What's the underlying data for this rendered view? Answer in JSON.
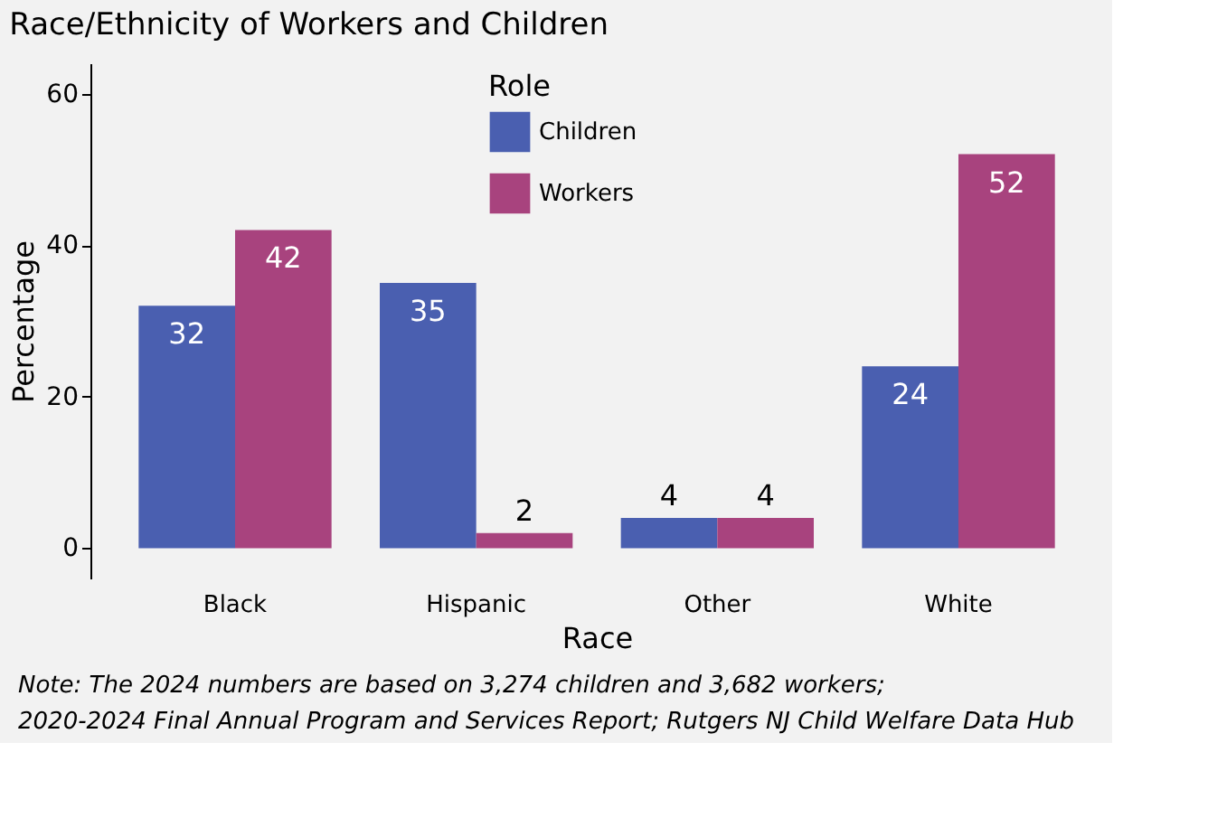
{
  "chart_data": {
    "type": "bar",
    "title": "Race/Ethnicity of Workers and Children",
    "xlabel": "Race",
    "ylabel": "Percentage",
    "legend_title": "Role",
    "categories": [
      "Black",
      "Hispanic",
      "Other",
      "White"
    ],
    "series": [
      {
        "name": "Children",
        "color": "#4a5fb0",
        "values": [
          32,
          35,
          4,
          24
        ]
      },
      {
        "name": "Workers",
        "color": "#a8437e",
        "values": [
          42,
          2,
          4,
          52
        ]
      }
    ],
    "ylim": [
      -4,
      64
    ],
    "yticks": [
      0,
      20,
      40,
      60
    ],
    "grid": false,
    "legend": "top",
    "data_labels": true,
    "annotations": [
      "Note:  The 2024 numbers are based on 3,274 children and 3,682 workers;",
      "2020-2024 Final Annual Program and Services Report; Rutgers NJ Child Welfare Data Hub"
    ]
  }
}
